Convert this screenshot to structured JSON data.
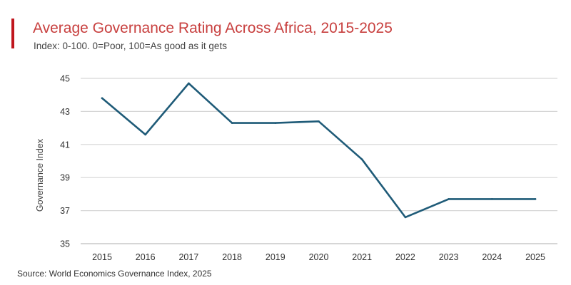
{
  "header": {
    "title": "Average Governance Rating Across Africa, 2015-2025",
    "subtitle": "Index: 0-100. 0=Poor, 100=As good as it gets"
  },
  "footer": {
    "source": "Source: World Economics Governance Index, 2025"
  },
  "colors": {
    "accent": "#c0161d",
    "title": "#c8403f",
    "line": "#1f5b78",
    "grid": "#d6d6d6"
  },
  "chart_data": {
    "type": "line",
    "title": "Average Governance Rating Across Africa, 2015-2025",
    "subtitle": "Index: 0-100. 0=Poor, 100=As good as it gets",
    "xlabel": "",
    "ylabel": "Governance Index",
    "categories": [
      "2015",
      "2016",
      "2017",
      "2018",
      "2019",
      "2020",
      "2021",
      "2022",
      "2023",
      "2024",
      "2025"
    ],
    "series": [
      {
        "name": "Governance Index",
        "values": [
          43.8,
          41.6,
          44.7,
          42.3,
          42.3,
          42.4,
          40.1,
          36.6,
          37.7,
          37.7,
          37.7
        ]
      }
    ],
    "ylim": [
      35,
      45
    ],
    "yticks": [
      35,
      37,
      39,
      41,
      43,
      45
    ],
    "ytick_labels": [
      "35",
      "37",
      "39",
      "41",
      "43",
      "45"
    ],
    "grid": true,
    "legend": "none"
  }
}
